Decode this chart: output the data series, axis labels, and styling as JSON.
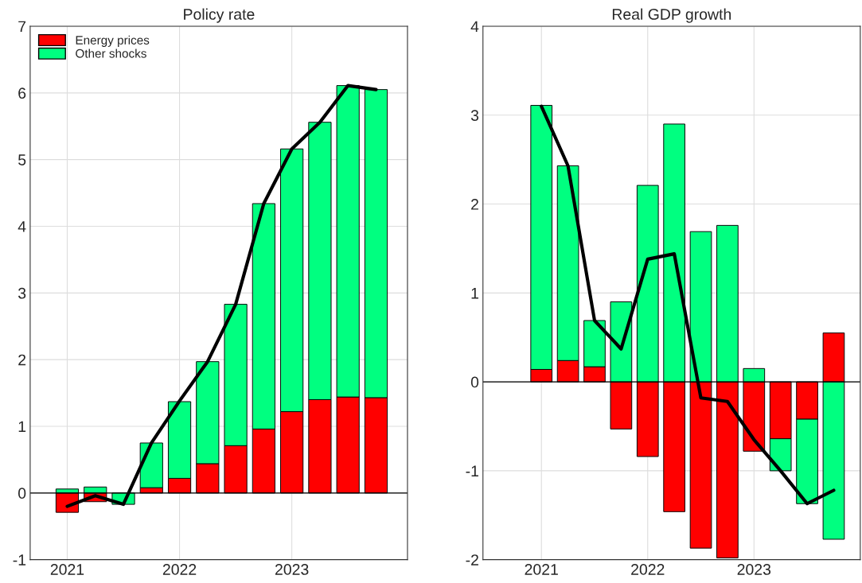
{
  "chart_data": [
    {
      "type": "bar",
      "title": "Policy rate",
      "stacked": true,
      "grid": true,
      "legend": "top left",
      "x": [
        2021,
        2021.25,
        2021.5,
        2021.75,
        2022,
        2022.25,
        2022.5,
        2022.75,
        2023,
        2023.25,
        2023.5,
        2023.75
      ],
      "xlim": [
        2020.67,
        2024.03
      ],
      "xticks": [
        2021,
        2022,
        2023
      ],
      "ylim": [
        -1,
        7
      ],
      "yticks": [
        -1,
        0,
        1,
        2,
        3,
        4,
        5,
        6,
        7
      ],
      "ref_lines": [
        {
          "axis": "y",
          "value": 0,
          "color": "#000000"
        }
      ],
      "series": [
        {
          "name": "Energy prices",
          "color": "#ff0000",
          "values": [
            -0.29,
            -0.13,
            null,
            0.08,
            0.22,
            0.44,
            0.71,
            0.96,
            1.22,
            1.4,
            1.44,
            1.43
          ]
        },
        {
          "name": "Other shocks",
          "color": "#00ff80",
          "values": [
            0.06,
            0.09,
            -0.17,
            0.67,
            1.15,
            1.53,
            2.12,
            3.38,
            3.94,
            4.16,
            4.67,
            4.62
          ]
        },
        {
          "type": "line",
          "color": "#000000",
          "values": [
            -0.2,
            -0.04,
            -0.17,
            0.75,
            1.38,
            1.97,
            2.83,
            4.34,
            5.16,
            5.56,
            6.11,
            6.05
          ]
        }
      ]
    },
    {
      "type": "bar",
      "title": "Real GDP growth",
      "stacked": true,
      "grid": true,
      "legend": false,
      "x": [
        2021,
        2021.25,
        2021.5,
        2021.75,
        2022,
        2022.25,
        2022.5,
        2022.75,
        2023,
        2023.25,
        2023.5,
        2023.75
      ],
      "xlim": [
        2020.45,
        2024.0
      ],
      "xticks": [
        2021,
        2022,
        2023
      ],
      "ylim": [
        -2,
        4
      ],
      "yticks": [
        -2,
        -1,
        0,
        1,
        2,
        3,
        4
      ],
      "ref_lines": [
        {
          "axis": "y",
          "value": 0,
          "color": "#000000"
        }
      ],
      "series": [
        {
          "color": "#ff0000",
          "values": [
            0.14,
            0.24,
            0.17,
            -0.53,
            -0.84,
            -1.46,
            -1.87,
            -1.98,
            -0.78,
            -0.64,
            -0.42,
            0.55
          ]
        },
        {
          "color": "#00ff80",
          "values": [
            2.97,
            2.19,
            0.52,
            0.9,
            2.21,
            2.9,
            1.69,
            1.76,
            0.15,
            -0.36,
            -0.95,
            -1.77
          ]
        },
        {
          "type": "line",
          "color": "#000000",
          "values": [
            3.1,
            2.43,
            0.69,
            0.37,
            1.38,
            1.44,
            -0.18,
            -0.22,
            -0.65,
            -1.0,
            -1.37,
            -1.22
          ]
        }
      ]
    }
  ]
}
